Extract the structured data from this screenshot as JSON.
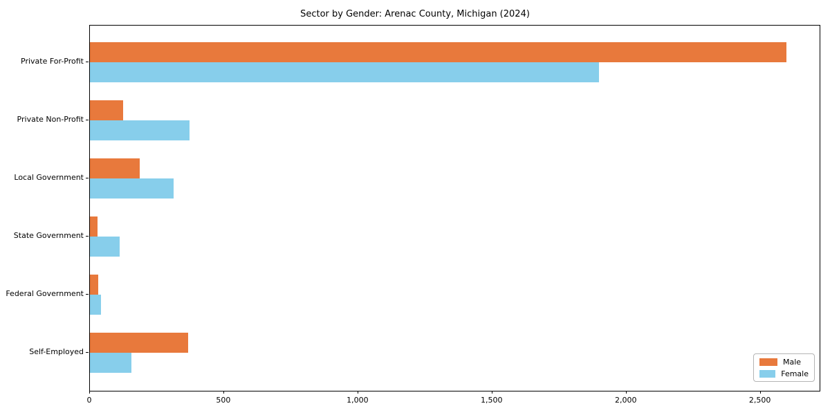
{
  "chart_data": {
    "type": "bar",
    "orientation": "horizontal",
    "title": "Sector by Gender: Arenac County, Michigan (2024)",
    "categories": [
      "Private For-Profit",
      "Private Non-Profit",
      "Local Government",
      "State Government",
      "Federal Government",
      "Self-Employed"
    ],
    "series": [
      {
        "name": "Male",
        "color": "#e8793c",
        "values": [
          2595,
          123,
          185,
          28,
          30,
          365
        ]
      },
      {
        "name": "Female",
        "color": "#87ceeb",
        "values": [
          1898,
          370,
          312,
          110,
          40,
          155
        ]
      }
    ],
    "xlabel": "",
    "ylabel": "",
    "xlim": [
      0,
      2720
    ],
    "xticks": [
      0,
      500,
      1000,
      1500,
      2000,
      2500
    ],
    "xtick_labels": [
      "0",
      "500",
      "1,000",
      "1,500",
      "2,000",
      "2,500"
    ],
    "grid": false,
    "legend": {
      "position": "lower right"
    },
    "colors": {
      "male": "#e8793c",
      "female": "#87ceeb",
      "axis": "#000000"
    }
  }
}
